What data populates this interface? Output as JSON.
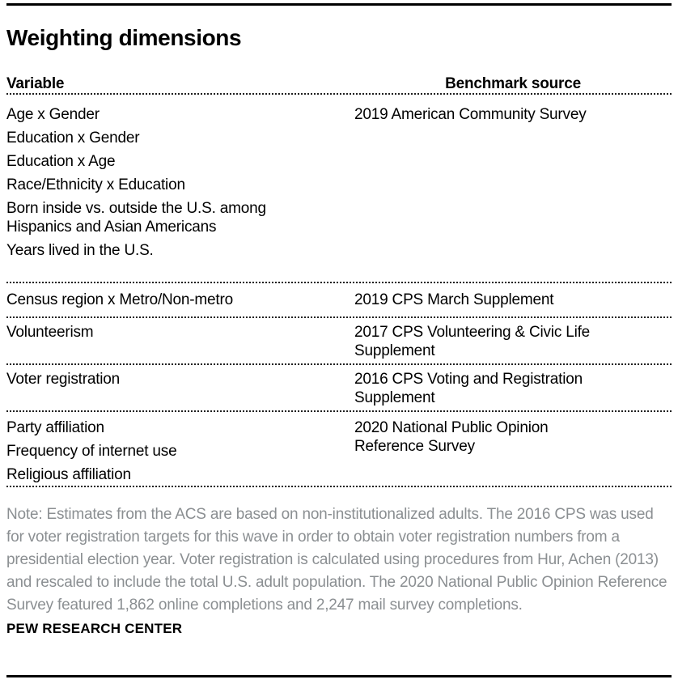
{
  "title": "Weighting dimensions",
  "colors": {
    "background": "#ffffff",
    "text": "#000000",
    "note_gray": "#8b8f92",
    "rule": "#000000",
    "dotted_divider": "#1f1f1f"
  },
  "table": {
    "headers": {
      "variable": "Variable",
      "benchmark": "Benchmark source"
    },
    "groups": [
      {
        "variables": [
          {
            "lines": [
              "Age x Gender"
            ]
          },
          {
            "lines": [
              "Education x Gender"
            ]
          },
          {
            "lines": [
              "Education x Age"
            ]
          },
          {
            "lines": [
              "Race/Ethnicity x Education"
            ]
          },
          {
            "lines": [
              "Born inside vs. outside the U.S. among",
              "Hispanics and Asian Americans"
            ]
          },
          {
            "lines": [
              "Years lived in the U.S."
            ]
          }
        ],
        "benchmark": {
          "lines": [
            "2019 American Community Survey"
          ]
        }
      },
      {
        "variables": [
          {
            "lines": [
              "Census region x Metro/Non-metro"
            ]
          }
        ],
        "benchmark": {
          "lines": [
            "2019 CPS March Supplement"
          ]
        }
      },
      {
        "variables": [
          {
            "lines": [
              "Volunteerism"
            ]
          }
        ],
        "benchmark": {
          "lines": [
            "2017 CPS Volunteering & Civic Life",
            "Supplement"
          ]
        }
      },
      {
        "variables": [
          {
            "lines": [
              "Voter registration"
            ]
          }
        ],
        "benchmark": {
          "lines": [
            "2016 CPS Voting and Registration",
            "Supplement"
          ]
        }
      },
      {
        "variables": [
          {
            "lines": [
              "Party affiliation"
            ]
          },
          {
            "lines": [
              "Frequency of internet use"
            ]
          },
          {
            "lines": [
              "Religious affiliation"
            ]
          }
        ],
        "benchmark": {
          "lines": [
            "2020 National Public Opinion",
            "Reference Survey"
          ]
        }
      }
    ]
  },
  "note": "Note: Estimates from the ACS are based on non-institutionalized adults.  The 2016 CPS was used for voter registration targets for this wave in order to obtain voter registration numbers from a presidential election year. Voter registration is calculated using procedures from Hur, Achen (2013) and rescaled to include the total U.S. adult population. The 2020 National Public Opinion Reference Survey featured 1,862 online completions and 2,247 mail survey completions.",
  "footer": "PEW RESEARCH CENTER"
}
